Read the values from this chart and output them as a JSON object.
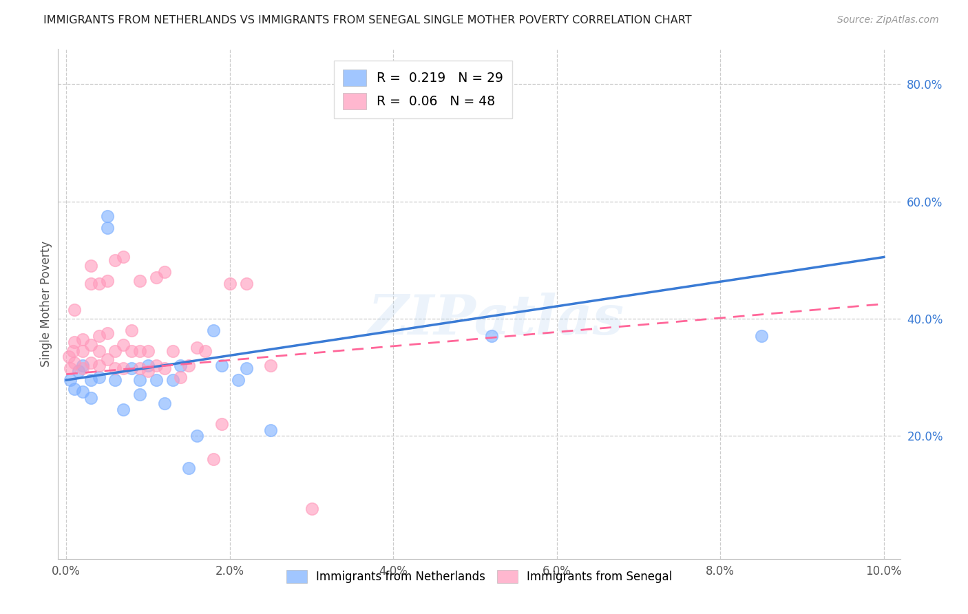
{
  "title": "IMMIGRANTS FROM NETHERLANDS VS IMMIGRANTS FROM SENEGAL SINGLE MOTHER POVERTY CORRELATION CHART",
  "source": "Source: ZipAtlas.com",
  "ylabel": "Single Mother Poverty",
  "xlim": [
    -0.001,
    0.102
  ],
  "ylim": [
    -0.01,
    0.86
  ],
  "xticks": [
    0.0,
    0.02,
    0.04,
    0.06,
    0.08,
    0.1
  ],
  "xtick_labels": [
    "0.0%",
    "2.0%",
    "4.0%",
    "6.0%",
    "8.0%",
    "10.0%"
  ],
  "ytick_labels_right": [
    "20.0%",
    "40.0%",
    "60.0%",
    "80.0%"
  ],
  "ytick_values_right": [
    0.2,
    0.4,
    0.6,
    0.8
  ],
  "grid_color": "#cccccc",
  "background_color": "#ffffff",
  "netherlands_color": "#7aaeff",
  "senegal_color": "#ff99bb",
  "netherlands_line_color": "#3a7bd5",
  "senegal_line_color": "#ff6699",
  "netherlands_R": 0.219,
  "netherlands_N": 29,
  "senegal_R": 0.06,
  "senegal_N": 48,
  "legend_label_netherlands": "Immigrants from Netherlands",
  "legend_label_senegal": "Immigrants from Senegal",
  "watermark": "ZIPatlas",
  "nl_line_x0": 0.0,
  "nl_line_y0": 0.295,
  "nl_line_x1": 0.1,
  "nl_line_y1": 0.505,
  "sn_line_x0": 0.0,
  "sn_line_y0": 0.305,
  "sn_line_x1": 0.1,
  "sn_line_y1": 0.425,
  "netherlands_x": [
    0.0005,
    0.001,
    0.0015,
    0.002,
    0.002,
    0.003,
    0.003,
    0.004,
    0.005,
    0.005,
    0.006,
    0.007,
    0.008,
    0.009,
    0.009,
    0.01,
    0.011,
    0.012,
    0.013,
    0.014,
    0.015,
    0.016,
    0.018,
    0.019,
    0.021,
    0.022,
    0.025,
    0.052,
    0.085
  ],
  "netherlands_y": [
    0.295,
    0.28,
    0.31,
    0.275,
    0.32,
    0.295,
    0.265,
    0.3,
    0.555,
    0.575,
    0.295,
    0.245,
    0.315,
    0.295,
    0.27,
    0.32,
    0.295,
    0.255,
    0.295,
    0.32,
    0.145,
    0.2,
    0.38,
    0.32,
    0.295,
    0.315,
    0.21,
    0.37,
    0.37
  ],
  "senegal_x": [
    0.0003,
    0.0005,
    0.0008,
    0.001,
    0.001,
    0.001,
    0.002,
    0.002,
    0.002,
    0.003,
    0.003,
    0.003,
    0.003,
    0.004,
    0.004,
    0.004,
    0.004,
    0.005,
    0.005,
    0.005,
    0.006,
    0.006,
    0.006,
    0.007,
    0.007,
    0.007,
    0.008,
    0.008,
    0.009,
    0.009,
    0.009,
    0.01,
    0.01,
    0.011,
    0.011,
    0.012,
    0.012,
    0.013,
    0.014,
    0.015,
    0.016,
    0.017,
    0.018,
    0.019,
    0.02,
    0.022,
    0.025,
    0.03
  ],
  "senegal_y": [
    0.335,
    0.315,
    0.345,
    0.325,
    0.36,
    0.415,
    0.315,
    0.345,
    0.365,
    0.325,
    0.355,
    0.46,
    0.49,
    0.32,
    0.345,
    0.37,
    0.46,
    0.33,
    0.375,
    0.465,
    0.315,
    0.345,
    0.5,
    0.315,
    0.355,
    0.505,
    0.345,
    0.38,
    0.315,
    0.345,
    0.465,
    0.31,
    0.345,
    0.32,
    0.47,
    0.48,
    0.315,
    0.345,
    0.3,
    0.32,
    0.35,
    0.345,
    0.16,
    0.22,
    0.46,
    0.46,
    0.32,
    0.075
  ]
}
